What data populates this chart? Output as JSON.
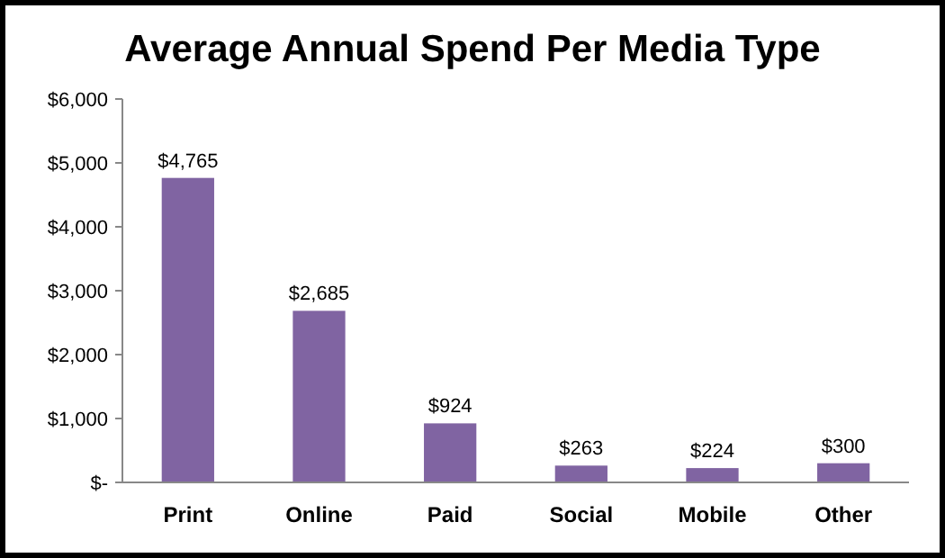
{
  "chart_data": {
    "type": "bar",
    "title": "Average Annual Spend Per Media Type",
    "categories": [
      "Print",
      "Online",
      "Paid",
      "Social",
      "Mobile",
      "Other"
    ],
    "values": [
      4765,
      2685,
      924,
      263,
      224,
      300
    ],
    "value_labels": [
      "$4,765",
      "$2,685",
      "$924",
      "$263",
      "$224",
      "$300"
    ],
    "color": "#8064a2",
    "ylim": [
      0,
      6000
    ],
    "yticks": [
      {
        "value": 0,
        "label": "$-"
      },
      {
        "value": 1000,
        "label": "$1,000"
      },
      {
        "value": 2000,
        "label": "$2,000"
      },
      {
        "value": 3000,
        "label": "$3,000"
      },
      {
        "value": 4000,
        "label": "$4,000"
      },
      {
        "value": 5000,
        "label": "$5,000"
      },
      {
        "value": 6000,
        "label": "$6,000"
      }
    ],
    "grid": false
  }
}
